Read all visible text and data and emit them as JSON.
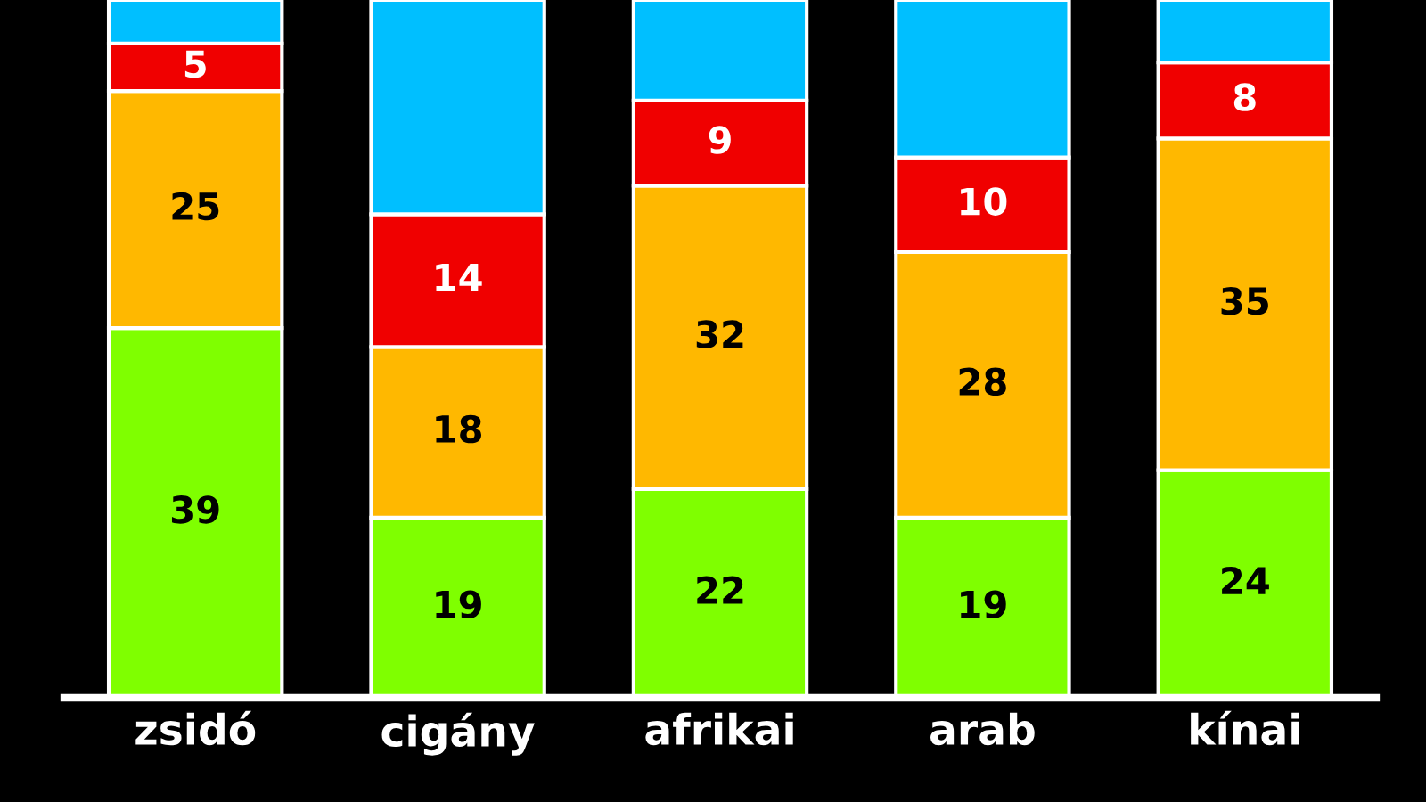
{
  "chart_data": {
    "type": "bar",
    "stacked": true,
    "categories": [
      "zsidó",
      "cigány",
      "afrikai",
      "arab",
      "kínai"
    ],
    "series": [
      {
        "color": "#7fff00",
        "values": [
          39,
          19,
          22,
          19,
          24
        ],
        "value_labels": [
          "39",
          "19",
          "22",
          "19",
          "24"
        ]
      },
      {
        "color": "#ffb800",
        "values": [
          25,
          18,
          32,
          28,
          35
        ],
        "value_labels": [
          "25",
          "18",
          "32",
          "28",
          "35"
        ]
      },
      {
        "color": "#f00000",
        "values": [
          5,
          14,
          9,
          10,
          8
        ],
        "value_labels": [
          "5",
          "14",
          "9",
          "10",
          "8"
        ]
      },
      {
        "color": "#00bfff",
        "values": [
          4.6,
          22.6,
          10.6,
          16.6,
          6.6
        ]
      }
    ],
    "ylim": [
      0,
      73.6
    ],
    "tick_labels": "x"
  }
}
